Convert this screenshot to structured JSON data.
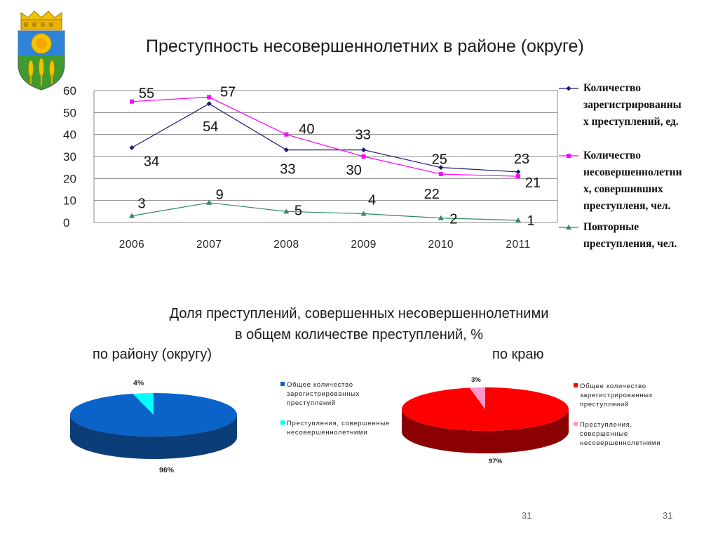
{
  "header": {
    "title": "Преступность несовершеннолетних в районе (округе)",
    "emblem": "coat-of-arms"
  },
  "chart_data": [
    {
      "type": "line",
      "title": "Преступность несовершеннолетних в районе (округе)",
      "categories": [
        "2006",
        "2007",
        "2008",
        "2009",
        "2010",
        "2011"
      ],
      "yticks": [
        0,
        10,
        20,
        30,
        40,
        50,
        60
      ],
      "ylim": [
        0,
        60
      ],
      "grid": true,
      "legend_position": "right",
      "series": [
        {
          "name": "Количество зарегистрированных преступлений, ед.",
          "color": "#1a1a6e",
          "marker": "diamond",
          "values": [
            34,
            54,
            33,
            33,
            25,
            23
          ]
        },
        {
          "name": "Количество несовершеннолетних, совершивших преступленя, чел.",
          "color": "#ff00ff",
          "marker": "square",
          "values": [
            55,
            57,
            40,
            30,
            22,
            21
          ]
        },
        {
          "name": "Повторные преступления, чел.",
          "color": "#2e8b57",
          "marker": "triangle",
          "values": [
            3,
            9,
            5,
            4,
            2,
            1
          ]
        }
      ],
      "legend_lines": [
        [
          "Количество",
          "зарегистрированны",
          "х преступлений, ед."
        ],
        [
          "Количество",
          "несовершеннолетни",
          "х, совершивших",
          "преступленя, чел."
        ],
        [
          "Повторные",
          "преступления, чел."
        ]
      ]
    },
    {
      "type": "pie",
      "title": "по району (округу)",
      "labels": [
        "Общее количество зарегистрированных преступлений",
        "Преступления, совершенные несовершеннолетними"
      ],
      "values": [
        96,
        4
      ],
      "display": [
        "96%",
        "4%"
      ],
      "colors": [
        "#0a63c9",
        "#00ffff"
      ],
      "dark_colors": [
        "#0b3d78",
        "#00aaaa"
      ],
      "legend_position": "right"
    },
    {
      "type": "pie",
      "title": "по краю",
      "labels": [
        "Общее количество зарегистрированных преступлений",
        "Преступления, совершенные несовершеннолетними"
      ],
      "values": [
        97,
        3
      ],
      "display": [
        "97%",
        "3%"
      ],
      "colors": [
        "#ff0000",
        "#ff99cc"
      ],
      "dark_colors": [
        "#8b0000",
        "#cc6688"
      ],
      "legend_position": "right"
    }
  ],
  "pies": {
    "heading_line1": "Доля преступлений, совершенных несовершеннолетними",
    "heading_line2": "в общем количестве преступлений, %",
    "left_caption": "по району (округу)",
    "right_caption": "по краю",
    "left_legend": [
      "Общее количество зарегистрированных преступлений",
      "Преступления, совершенные несовершеннолетними"
    ],
    "right_legend": [
      "Общее количество зарегистрированных преступлений",
      "Преступления, совершенные несовершеннолетними"
    ],
    "left_legend_lines": [
      [
        "Общее количество",
        "зарегистрированных",
        "преступлений"
      ],
      [
        "Преступления, совершенные",
        "несовершеннолетними"
      ]
    ],
    "right_legend_lines": [
      [
        "Общее количество",
        "зарегистрированных",
        "преступлений"
      ],
      [
        "Преступления,",
        "совершенные",
        "несовершеннолетними"
      ]
    ]
  },
  "footer": {
    "page_number": "31",
    "slide_number": "31"
  }
}
